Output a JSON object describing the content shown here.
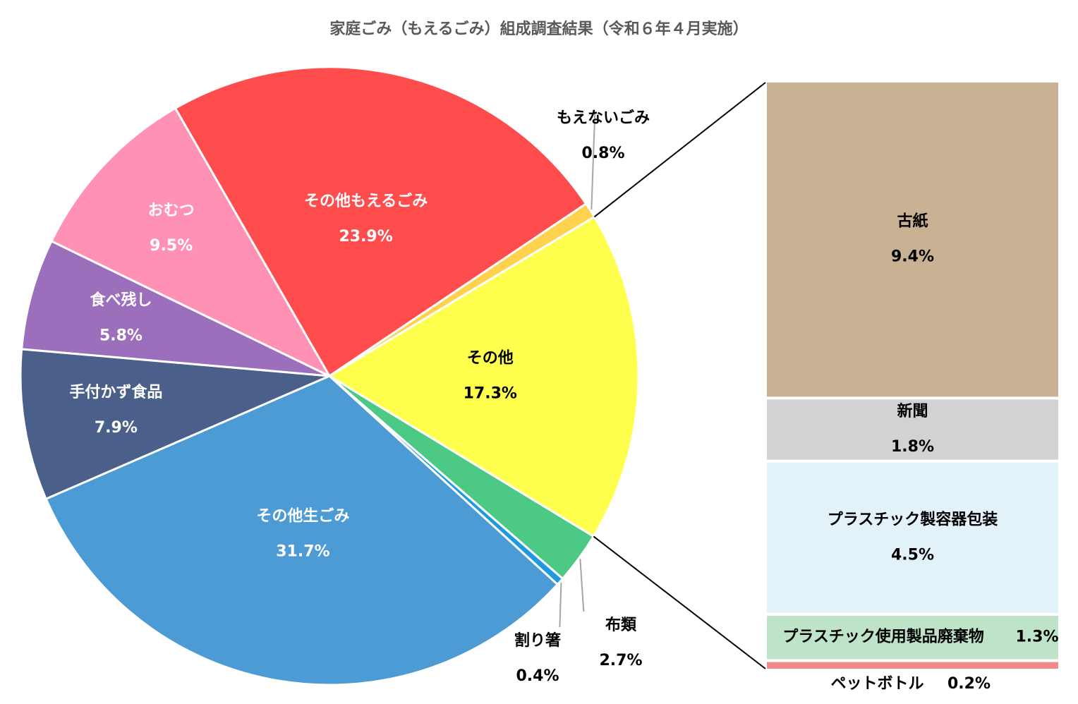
{
  "chart_data": [
    {
      "type": "pie",
      "title": "家庭ごみ（もえるごみ）組成調査結果（令和６年４月実施）",
      "categories": [
        "その他",
        "布類",
        "割り箸",
        "その他生ごみ",
        "手付かず食品",
        "食べ残し",
        "おむつ",
        "その他もえるごみ",
        "もえないごみ"
      ],
      "values": [
        17.3,
        2.7,
        0.4,
        31.7,
        7.9,
        5.8,
        9.5,
        23.9,
        0.8
      ],
      "value_labels": [
        "17.3%",
        "2.7%",
        "0.4%",
        "31.7%",
        "7.9%",
        "5.8%",
        "9.5%",
        "23.9%",
        "0.8%"
      ],
      "colors": [
        "#ffff4d",
        "#4dc986",
        "#1e9be0",
        "#4d9bd4",
        "#4a5f8a",
        "#9b6fbc",
        "#ff91b4",
        "#ff4d4d",
        "#ffd24d"
      ]
    },
    {
      "type": "stacked_bar",
      "categories": [
        "古紙",
        "新聞",
        "プラスチック製容器包装",
        "プラスチック使用製品廃棄物",
        "ペットボトル"
      ],
      "values": [
        9.4,
        1.8,
        4.5,
        1.3,
        0.2
      ],
      "value_labels": [
        "9.4%",
        "1.8%",
        "4.5%",
        "1.3%",
        "0.2%"
      ],
      "colors": [
        "#c9b293",
        "#d2d2d2",
        "#e3f1f8",
        "#bfe3c8",
        "#f08a8a"
      ]
    }
  ]
}
